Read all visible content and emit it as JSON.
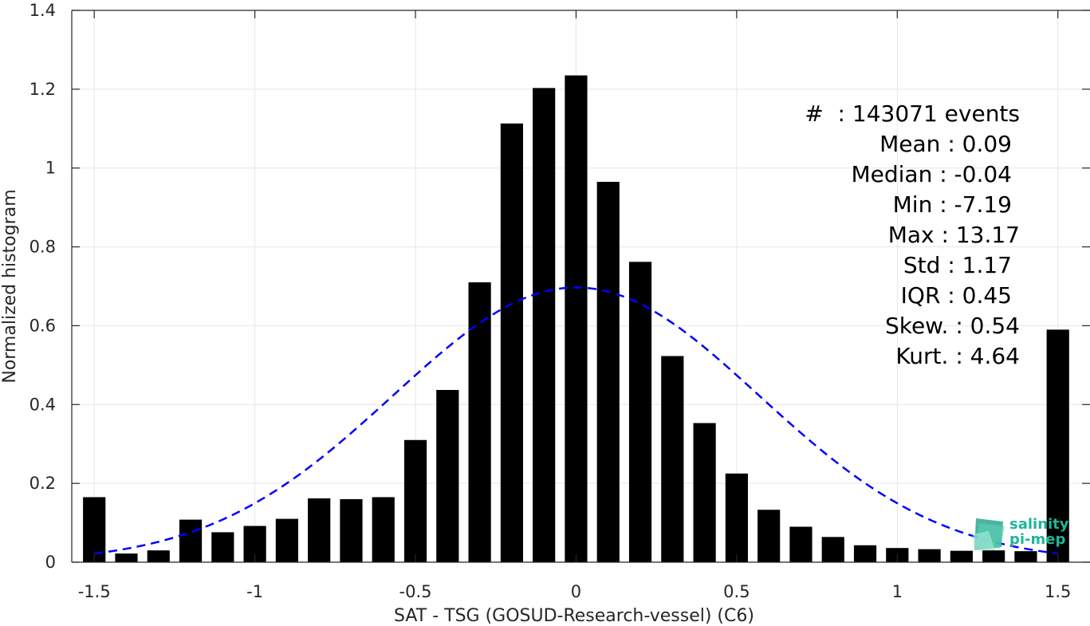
{
  "chart_data": {
    "type": "bar",
    "xlabel": "SAT - TSG (GOSUD-Research-vessel) (C6)",
    "ylabel": "Normalized histogram",
    "xlim": [
      -1.57,
      1.6
    ],
    "ylim": [
      0,
      1.4
    ],
    "xticks": [
      -1.5,
      -1,
      -0.5,
      0,
      0.5,
      1,
      1.5
    ],
    "xtick_labels": [
      "-1.5",
      "-1",
      "-0.5",
      "0",
      "0.5",
      "1",
      "1.5"
    ],
    "yticks": [
      0,
      0.2,
      0.4,
      0.6,
      0.8,
      1,
      1.2,
      1.4
    ],
    "ytick_labels": [
      "0",
      "0.2",
      "0.4",
      "0.6",
      "0.8",
      "1",
      "1.2",
      "1.4"
    ],
    "grid": true,
    "bar_color": "#000000",
    "bin_width": 0.1,
    "bars": {
      "x": [
        -1.5,
        -1.4,
        -1.3,
        -1.2,
        -1.1,
        -1.0,
        -0.9,
        -0.8,
        -0.7,
        -0.6,
        -0.5,
        -0.4,
        -0.3,
        -0.2,
        -0.1,
        0.0,
        0.1,
        0.2,
        0.3,
        0.4,
        0.5,
        0.6,
        0.7,
        0.8,
        0.9,
        1.0,
        1.1,
        1.2,
        1.3,
        1.4,
        1.5
      ],
      "values": [
        0.165,
        0.022,
        0.03,
        0.108,
        0.076,
        0.092,
        0.11,
        0.162,
        0.16,
        0.165,
        0.31,
        0.437,
        0.71,
        1.113,
        1.203,
        1.235,
        0.965,
        0.762,
        0.523,
        0.353,
        0.225,
        0.133,
        0.09,
        0.064,
        0.043,
        0.036,
        0.033,
        0.029,
        0.03,
        0.028,
        0.59
      ]
    },
    "fit_curve": {
      "type": "gaussian",
      "style": "dashed",
      "color": "#0000ff",
      "mean": 0.0,
      "std": 0.57,
      "peak": 0.697,
      "x_range": [
        -1.5,
        1.5
      ]
    },
    "stats": [
      "#  : 143071 events",
      "Mean : 0.09",
      "Median : -0.04",
      "Min : -7.19",
      "Max : 13.17",
      "Std : 1.17",
      "IQR : 0.45",
      "Skew. : 0.54",
      "Kurt. : 4.64"
    ]
  },
  "logo": {
    "line1": "salinity",
    "line2": "pi-mep",
    "color": "#20b59a"
  }
}
